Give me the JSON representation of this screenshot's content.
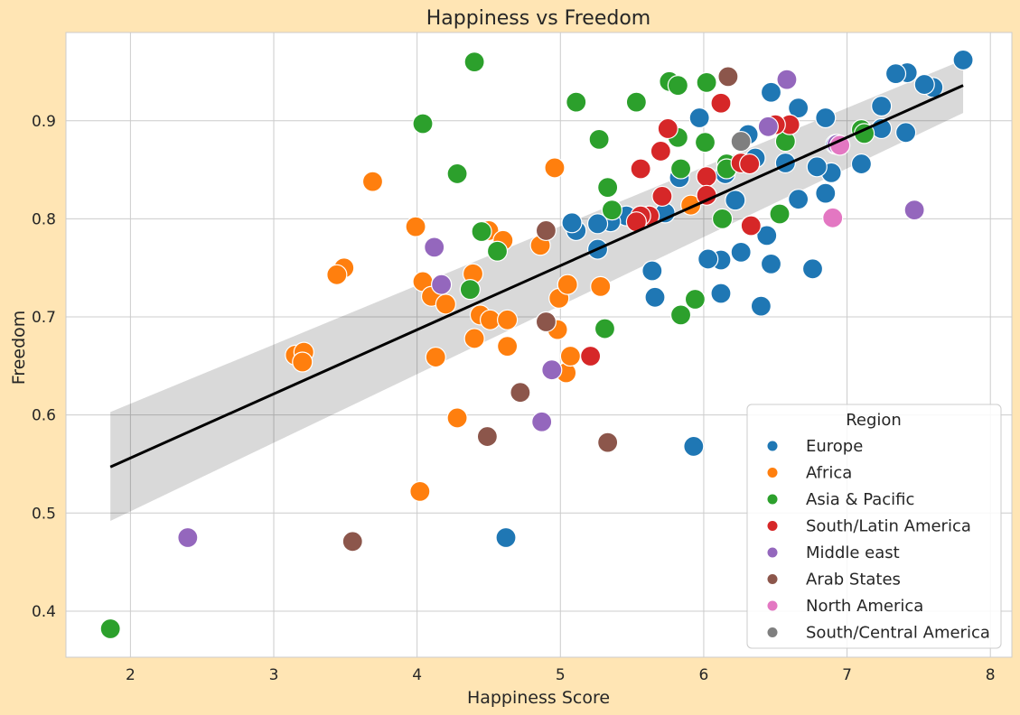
{
  "chart_data": {
    "type": "scatter",
    "title": "Happiness vs Freedom",
    "xlabel": "Happiness Score",
    "ylabel": "Freedom",
    "xlim": [
      1.55,
      8.15
    ],
    "ylim": [
      0.353,
      0.99
    ],
    "xticks": [
      2,
      3,
      4,
      5,
      6,
      7,
      8
    ],
    "yticks": [
      0.4,
      0.5,
      0.6,
      0.7,
      0.8,
      0.9
    ],
    "grid": true,
    "legend": {
      "title": "Region",
      "placement": "bottom-right"
    },
    "regression": {
      "x": [
        1.86,
        7.81
      ],
      "y": [
        0.547,
        0.936
      ],
      "ci_lower": [
        0.492,
        0.908
      ],
      "ci_upper": [
        0.603,
        0.962
      ],
      "color": "#000000"
    },
    "series": [
      {
        "name": "Europe",
        "color": "#1f77b4",
        "points": [
          [
            7.81,
            0.962
          ],
          [
            7.6,
            0.934
          ],
          [
            7.54,
            0.937
          ],
          [
            7.42,
            0.949
          ],
          [
            7.34,
            0.948
          ],
          [
            7.24,
            0.915
          ],
          [
            7.41,
            0.888
          ],
          [
            7.24,
            0.892
          ],
          [
            7.1,
            0.856
          ],
          [
            6.92,
            0.876
          ],
          [
            6.89,
            0.847
          ],
          [
            6.85,
            0.903
          ],
          [
            6.85,
            0.826
          ],
          [
            6.79,
            0.853
          ],
          [
            6.66,
            0.913
          ],
          [
            6.66,
            0.82
          ],
          [
            6.57,
            0.857
          ],
          [
            6.47,
            0.929
          ],
          [
            6.76,
            0.749
          ],
          [
            6.44,
            0.783
          ],
          [
            6.47,
            0.754
          ],
          [
            6.4,
            0.711
          ],
          [
            6.26,
            0.766
          ],
          [
            6.36,
            0.862
          ],
          [
            6.31,
            0.886
          ],
          [
            6.22,
            0.819
          ],
          [
            6.15,
            0.846
          ],
          [
            6.12,
            0.724
          ],
          [
            6.12,
            0.758
          ],
          [
            6.03,
            0.759
          ],
          [
            5.97,
            0.903
          ],
          [
            5.83,
            0.842
          ],
          [
            5.73,
            0.806
          ],
          [
            5.66,
            0.72
          ],
          [
            5.64,
            0.747
          ],
          [
            5.46,
            0.803
          ],
          [
            5.35,
            0.797
          ],
          [
            5.26,
            0.795
          ],
          [
            5.26,
            0.769
          ],
          [
            5.11,
            0.788
          ],
          [
            5.08,
            0.796
          ],
          [
            5.93,
            0.568
          ],
          [
            4.62,
            0.475
          ]
        ]
      },
      {
        "name": "Africa",
        "color": "#ff7f0e",
        "points": [
          [
            3.69,
            0.838
          ],
          [
            3.99,
            0.792
          ],
          [
            4.04,
            0.736
          ],
          [
            3.49,
            0.75
          ],
          [
            3.44,
            0.743
          ],
          [
            3.15,
            0.661
          ],
          [
            3.21,
            0.664
          ],
          [
            3.2,
            0.654
          ],
          [
            4.1,
            0.721
          ],
          [
            4.2,
            0.713
          ],
          [
            4.13,
            0.659
          ],
          [
            4.28,
            0.597
          ],
          [
            4.02,
            0.522
          ],
          [
            4.39,
            0.744
          ],
          [
            4.5,
            0.788
          ],
          [
            4.6,
            0.778
          ],
          [
            4.44,
            0.702
          ],
          [
            4.51,
            0.697
          ],
          [
            4.4,
            0.678
          ],
          [
            4.63,
            0.697
          ],
          [
            4.63,
            0.67
          ],
          [
            4.86,
            0.773
          ],
          [
            4.96,
            0.852
          ],
          [
            4.99,
            0.719
          ],
          [
            4.98,
            0.687
          ],
          [
            5.05,
            0.733
          ],
          [
            5.04,
            0.643
          ],
          [
            5.07,
            0.66
          ],
          [
            5.28,
            0.731
          ],
          [
            5.91,
            0.814
          ]
        ]
      },
      {
        "name": "Asia & Pacific",
        "color": "#2ca02c",
        "points": [
          [
            4.4,
            0.96
          ],
          [
            4.04,
            0.897
          ],
          [
            4.28,
            0.846
          ],
          [
            4.45,
            0.787
          ],
          [
            4.56,
            0.767
          ],
          [
            4.37,
            0.728
          ],
          [
            5.11,
            0.919
          ],
          [
            5.27,
            0.881
          ],
          [
            5.33,
            0.832
          ],
          [
            5.36,
            0.809
          ],
          [
            5.31,
            0.688
          ],
          [
            5.53,
            0.919
          ],
          [
            5.76,
            0.94
          ],
          [
            5.82,
            0.936
          ],
          [
            6.02,
            0.939
          ],
          [
            5.82,
            0.883
          ],
          [
            6.01,
            0.878
          ],
          [
            5.84,
            0.851
          ],
          [
            6.13,
            0.8
          ],
          [
            6.16,
            0.856
          ],
          [
            6.16,
            0.851
          ],
          [
            6.57,
            0.879
          ],
          [
            6.53,
            0.805
          ],
          [
            5.94,
            0.718
          ],
          [
            5.84,
            0.702
          ],
          [
            7.1,
            0.891
          ],
          [
            7.12,
            0.887
          ],
          [
            1.86,
            0.382
          ]
        ]
      },
      {
        "name": "South/Latin America",
        "color": "#d62728",
        "points": [
          [
            6.12,
            0.918
          ],
          [
            5.75,
            0.892
          ],
          [
            6.6,
            0.896
          ],
          [
            6.5,
            0.896
          ],
          [
            5.7,
            0.869
          ],
          [
            5.56,
            0.851
          ],
          [
            6.02,
            0.843
          ],
          [
            6.26,
            0.857
          ],
          [
            6.32,
            0.856
          ],
          [
            5.71,
            0.823
          ],
          [
            6.02,
            0.824
          ],
          [
            5.62,
            0.803
          ],
          [
            5.56,
            0.803
          ],
          [
            5.53,
            0.797
          ],
          [
            6.33,
            0.793
          ],
          [
            5.21,
            0.66
          ]
        ]
      },
      {
        "name": "Middle east",
        "color": "#9467bd",
        "points": [
          [
            6.58,
            0.942
          ],
          [
            6.45,
            0.894
          ],
          [
            6.93,
            0.876
          ],
          [
            7.47,
            0.809
          ],
          [
            4.12,
            0.771
          ],
          [
            4.17,
            0.733
          ],
          [
            4.94,
            0.646
          ],
          [
            4.87,
            0.593
          ],
          [
            2.4,
            0.475
          ]
        ]
      },
      {
        "name": "Arab States",
        "color": "#8c564b",
        "points": [
          [
            6.17,
            0.945
          ],
          [
            4.9,
            0.788
          ],
          [
            4.9,
            0.695
          ],
          [
            4.72,
            0.623
          ],
          [
            4.49,
            0.578
          ],
          [
            5.33,
            0.572
          ],
          [
            3.55,
            0.471
          ]
        ]
      },
      {
        "name": "North America",
        "color": "#e377c2",
        "points": [
          [
            6.9,
            0.801
          ],
          [
            6.95,
            0.875
          ]
        ]
      },
      {
        "name": "South/Central America",
        "color": "#7f7f7f",
        "points": [
          [
            6.26,
            0.879
          ]
        ]
      }
    ]
  }
}
